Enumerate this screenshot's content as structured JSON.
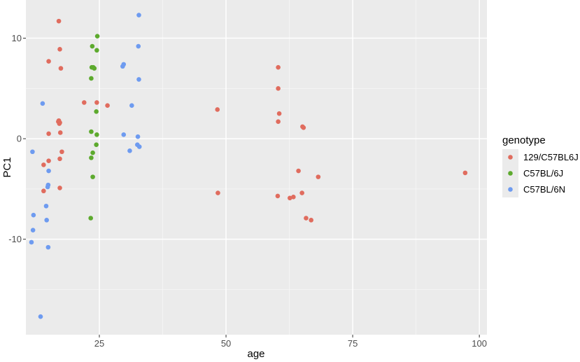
{
  "chart_data": {
    "type": "scatter",
    "xlabel": "age",
    "ylabel": "PC1",
    "xlim": [
      10.5,
      101.5
    ],
    "ylim": [
      -19.5,
      13.8
    ],
    "x_ticks": [
      25,
      50,
      75,
      100
    ],
    "x_tick_labels": [
      "25",
      "50",
      "75",
      "100"
    ],
    "x_minor": [
      37.5,
      62.5,
      87.5
    ],
    "y_ticks": [
      10,
      0,
      -10
    ],
    "y_tick_labels": [
      "10",
      "0",
      "-10"
    ],
    "y_minor": [
      5,
      -5,
      -15
    ],
    "grid": true,
    "legend": {
      "title": "genotype",
      "position": "right"
    },
    "series": [
      {
        "name": "129/C57BL6J",
        "color": "#E06C5E",
        "points": [
          [
            17,
            11.7
          ],
          [
            17.2,
            8.9
          ],
          [
            15,
            7.7
          ],
          [
            17.4,
            7
          ],
          [
            22,
            3.6
          ],
          [
            24.5,
            3.6
          ],
          [
            26.6,
            3.3
          ],
          [
            17,
            1.8
          ],
          [
            17.2,
            1.6
          ],
          [
            16.9,
            1.7
          ],
          [
            17.1,
            1.5
          ],
          [
            15,
            0.5
          ],
          [
            17.3,
            0.6
          ],
          [
            17.6,
            -1.3
          ],
          [
            15,
            -2.2
          ],
          [
            17.2,
            -2
          ],
          [
            14,
            -2.6
          ],
          [
            14,
            -5.2
          ],
          [
            17.2,
            -4.9
          ],
          [
            48.3,
            2.9
          ],
          [
            48.4,
            -5.4
          ],
          [
            60.3,
            7.1
          ],
          [
            60.3,
            5
          ],
          [
            60.5,
            2.5
          ],
          [
            60.3,
            1.7
          ],
          [
            65.1,
            1.2
          ],
          [
            65.3,
            1.1
          ],
          [
            64.3,
            -3.2
          ],
          [
            68.2,
            -3.8
          ],
          [
            65,
            -5.4
          ],
          [
            60.2,
            -5.7
          ],
          [
            62.6,
            -5.9
          ],
          [
            63.3,
            -5.8
          ],
          [
            65.8,
            -7.9
          ],
          [
            66.8,
            -8.1
          ],
          [
            97.2,
            -3.4
          ]
        ]
      },
      {
        "name": "C57BL/6J",
        "color": "#5DAA2E",
        "points": [
          [
            24.6,
            10.2
          ],
          [
            23.6,
            9.2
          ],
          [
            24.5,
            8.8
          ],
          [
            23.5,
            7.1
          ],
          [
            23.8,
            7.1
          ],
          [
            24,
            7
          ],
          [
            23.4,
            6
          ],
          [
            24.4,
            2.7
          ],
          [
            23.4,
            0.7
          ],
          [
            24.5,
            0.4
          ],
          [
            24.4,
            -0.6
          ],
          [
            23.7,
            -1.4
          ],
          [
            23.4,
            -1.9
          ],
          [
            23.7,
            -3.8
          ],
          [
            23.3,
            -7.9
          ]
        ]
      },
      {
        "name": "C57BL/6N",
        "color": "#6E9BF0",
        "points": [
          [
            32.8,
            12.3
          ],
          [
            32.7,
            9.2
          ],
          [
            29.6,
            7.2
          ],
          [
            29.8,
            7.4
          ],
          [
            32.8,
            5.9
          ],
          [
            31.4,
            3.3
          ],
          [
            13.8,
            3.5
          ],
          [
            29.8,
            0.4
          ],
          [
            32.6,
            0.2
          ],
          [
            32.5,
            -0.6
          ],
          [
            32.9,
            -0.8
          ],
          [
            31,
            -1.2
          ],
          [
            11.8,
            -1.3
          ],
          [
            15,
            -3.2
          ],
          [
            14.9,
            -4.6
          ],
          [
            14.8,
            -4.8
          ],
          [
            12,
            -7.6
          ],
          [
            14.5,
            -6.7
          ],
          [
            14.6,
            -8.1
          ],
          [
            11.9,
            -9.1
          ],
          [
            11.6,
            -10.3
          ],
          [
            14.9,
            -10.8
          ],
          [
            13.4,
            -17.7
          ]
        ]
      }
    ]
  }
}
